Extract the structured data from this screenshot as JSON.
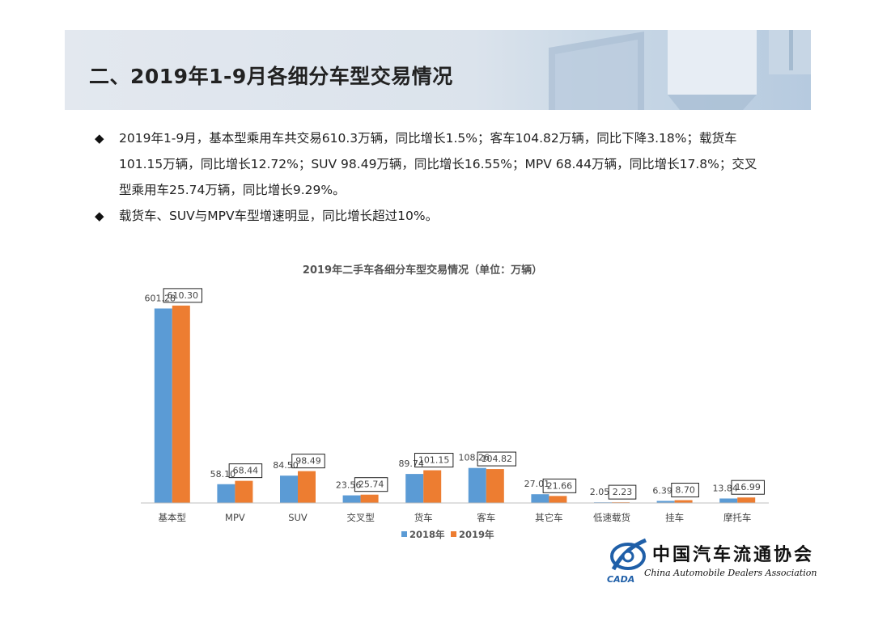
{
  "header": {
    "title": "二、2019年1-9月各细分车型交易情况"
  },
  "bullets": [
    "2019年1-9月，基本型乘用车共交易610.3万辆，同比增长1.5%；客车104.82万辆，同比下降3.18%；载货车101.15万辆，同比增长12.72%；SUV  98.49万辆，同比增长16.55%；MPV  68.44万辆，同比增长17.8%；交叉型乘用车25.74万辆，同比增长9.29%。",
    "载货车、SUV与MPV车型增速明显，同比增长超过10%。"
  ],
  "bullet_icon": "diamond-bullet-icon",
  "chart_data": {
    "type": "bar",
    "title": "2019年二手车各细分车型交易情况（单位：万辆）",
    "categories": [
      "基本型",
      "MPV",
      "SUV",
      "交叉型",
      "货车",
      "客车",
      "其它车",
      "低速载货",
      "挂车",
      "摩托车"
    ],
    "series": [
      {
        "name": "2018年",
        "color": "#5b9bd5",
        "values": [
          601.28,
          58.1,
          84.5,
          23.56,
          89.74,
          108.26,
          27.01,
          2.05,
          6.39,
          13.84
        ],
        "labels": [
          "601.28",
          "58.10",
          "84.50",
          "23.56",
          "89.74",
          "108.26",
          "27.01",
          "2.05",
          "6.39",
          "13.84"
        ]
      },
      {
        "name": "2019年",
        "color": "#ed7d31",
        "values": [
          610.3,
          68.44,
          98.49,
          25.74,
          101.15,
          104.82,
          21.66,
          2.23,
          8.7,
          16.99
        ],
        "labels": [
          "610.30",
          "68.44",
          "98.49",
          "25.74",
          "101.15",
          "104.82",
          "21.66",
          "2.23",
          "8.70",
          "16.99"
        ]
      }
    ],
    "ylim": [
      0,
      660
    ],
    "grid": false,
    "legend_position": "bottom"
  },
  "logo": {
    "cn": "中国汽车流通协会",
    "en": "China Automobile Dealers Association",
    "mark": "CADA"
  }
}
